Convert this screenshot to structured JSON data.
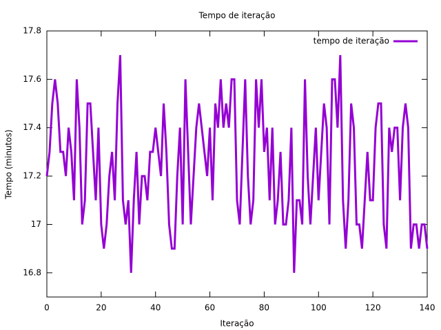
{
  "chart_data": {
    "type": "line",
    "title": "Tempo de iteração",
    "xlabel": "Iteração",
    "ylabel": "Tempo (minutos)",
    "x": [
      0,
      1,
      2,
      3,
      4,
      5,
      6,
      7,
      8,
      9,
      10,
      11,
      12,
      13,
      14,
      15,
      16,
      17,
      18,
      19,
      20,
      21,
      22,
      23,
      24,
      25,
      26,
      27,
      28,
      29,
      30,
      31,
      32,
      33,
      34,
      35,
      36,
      37,
      38,
      39,
      40,
      41,
      42,
      43,
      44,
      45,
      46,
      47,
      48,
      49,
      50,
      51,
      52,
      53,
      54,
      55,
      56,
      57,
      58,
      59,
      60,
      61,
      62,
      63,
      64,
      65,
      66,
      67,
      68,
      69,
      70,
      71,
      72,
      73,
      74,
      75,
      76,
      77,
      78,
      79,
      80,
      81,
      82,
      83,
      84,
      85,
      86,
      87,
      88,
      89,
      90,
      91,
      92,
      93,
      94,
      95,
      96,
      97,
      98,
      99,
      100,
      101,
      102,
      103,
      104,
      105,
      106,
      107,
      108,
      109,
      110,
      111,
      112,
      113,
      114,
      115,
      116,
      117,
      118,
      119,
      120,
      121,
      122,
      123,
      124,
      125,
      126,
      127,
      128,
      129,
      130,
      131,
      132,
      133,
      134,
      135,
      136,
      137,
      138,
      139,
      140
    ],
    "series": [
      {
        "name": "tempo de iteração",
        "color": "#9400d3",
        "values": [
          17.2,
          17.3,
          17.5,
          17.6,
          17.5,
          17.3,
          17.3,
          17.2,
          17.4,
          17.3,
          17.1,
          17.6,
          17.4,
          17.0,
          17.1,
          17.5,
          17.5,
          17.3,
          17.1,
          17.4,
          17.0,
          16.9,
          17.0,
          17.2,
          17.3,
          17.1,
          17.5,
          17.7,
          17.1,
          17.0,
          17.1,
          16.8,
          17.1,
          17.3,
          17.0,
          17.2,
          17.2,
          17.1,
          17.3,
          17.3,
          17.4,
          17.3,
          17.2,
          17.5,
          17.3,
          17.0,
          16.9,
          16.9,
          17.2,
          17.4,
          17.0,
          17.6,
          17.3,
          17.0,
          17.2,
          17.4,
          17.5,
          17.4,
          17.3,
          17.2,
          17.4,
          17.1,
          17.5,
          17.4,
          17.6,
          17.4,
          17.5,
          17.4,
          17.6,
          17.6,
          17.1,
          17.0,
          17.3,
          17.6,
          17.2,
          17.0,
          17.1,
          17.6,
          17.4,
          17.6,
          17.3,
          17.4,
          17.1,
          17.4,
          17.0,
          17.1,
          17.3,
          17.0,
          17.0,
          17.1,
          17.4,
          16.8,
          17.1,
          17.1,
          17.0,
          17.6,
          17.2,
          17.0,
          17.2,
          17.4,
          17.1,
          17.3,
          17.5,
          17.4,
          17.0,
          17.6,
          17.6,
          17.4,
          17.7,
          17.1,
          16.9,
          17.1,
          17.5,
          17.4,
          17.0,
          17.0,
          16.9,
          17.1,
          17.3,
          17.1,
          17.1,
          17.4,
          17.5,
          17.5,
          17.0,
          16.9,
          17.4,
          17.3,
          17.4,
          17.4,
          17.1,
          17.4,
          17.5,
          17.4,
          16.9,
          17.0,
          17.0,
          16.9,
          17.0,
          17.0,
          16.9
        ]
      }
    ],
    "xlim": [
      0,
      140
    ],
    "xticks": [
      0,
      20,
      40,
      60,
      80,
      100,
      120,
      140
    ],
    "ylim": [
      16.7,
      17.8
    ],
    "yticks": [
      16.8,
      17,
      17.2,
      17.4,
      17.6,
      17.8
    ],
    "grid": false,
    "legend": "top-right"
  }
}
